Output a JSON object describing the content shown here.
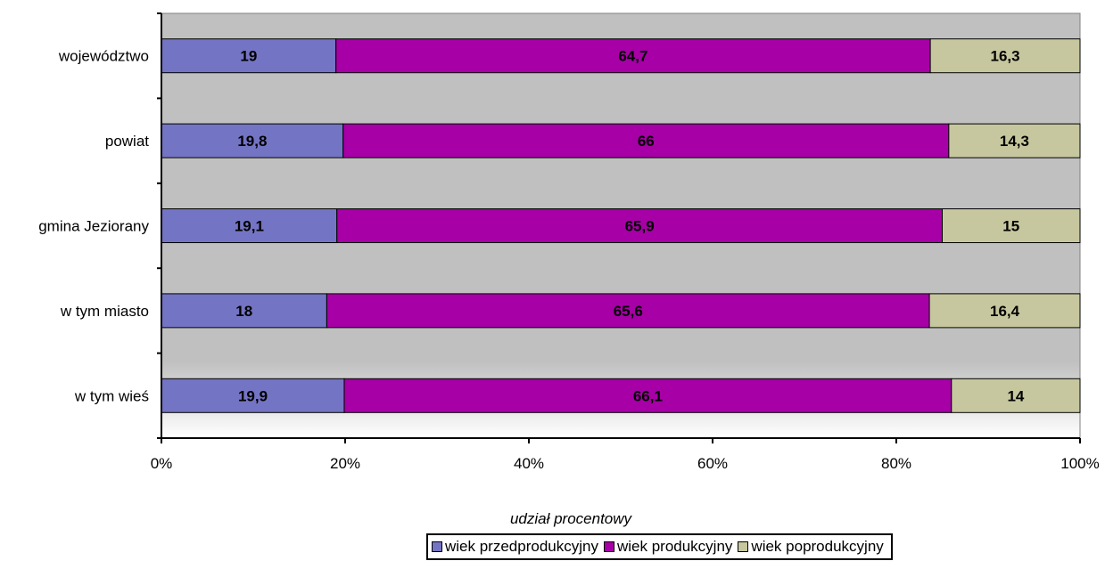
{
  "chart_data": {
    "type": "bar",
    "orientation": "horizontal",
    "stacked": "percent",
    "categories": [
      "województwo",
      "powiat",
      "gmina Jeziorany",
      "w tym miasto",
      "w tym wieś"
    ],
    "series": [
      {
        "name": "wiek przedprodukcyjny",
        "color": "#7474c4",
        "values": [
          19,
          19.8,
          19.1,
          18,
          19.9
        ],
        "labels": [
          "19",
          "19,8",
          "19,1",
          "18",
          "19,9"
        ]
      },
      {
        "name": "wiek produkcyjny",
        "color": "#a600a6",
        "values": [
          64.7,
          66,
          65.9,
          65.6,
          66.1
        ],
        "labels": [
          "64,7",
          "66",
          "65,9",
          "65,6",
          "66,1"
        ]
      },
      {
        "name": "wiek poprodukcyjny",
        "color": "#c7c79f",
        "values": [
          16.3,
          14.3,
          15,
          16.4,
          14
        ],
        "labels": [
          "16,3",
          "14,3",
          "15",
          "16,4",
          "14"
        ]
      }
    ],
    "xlabel": "udział procentowy",
    "ylabel": "",
    "xlim": [
      0,
      100
    ],
    "x_ticks": [
      "0%",
      "20%",
      "40%",
      "60%",
      "80%",
      "100%"
    ],
    "legend_position": "bottom",
    "grid": false,
    "plot_background": "#c0c0c0"
  }
}
